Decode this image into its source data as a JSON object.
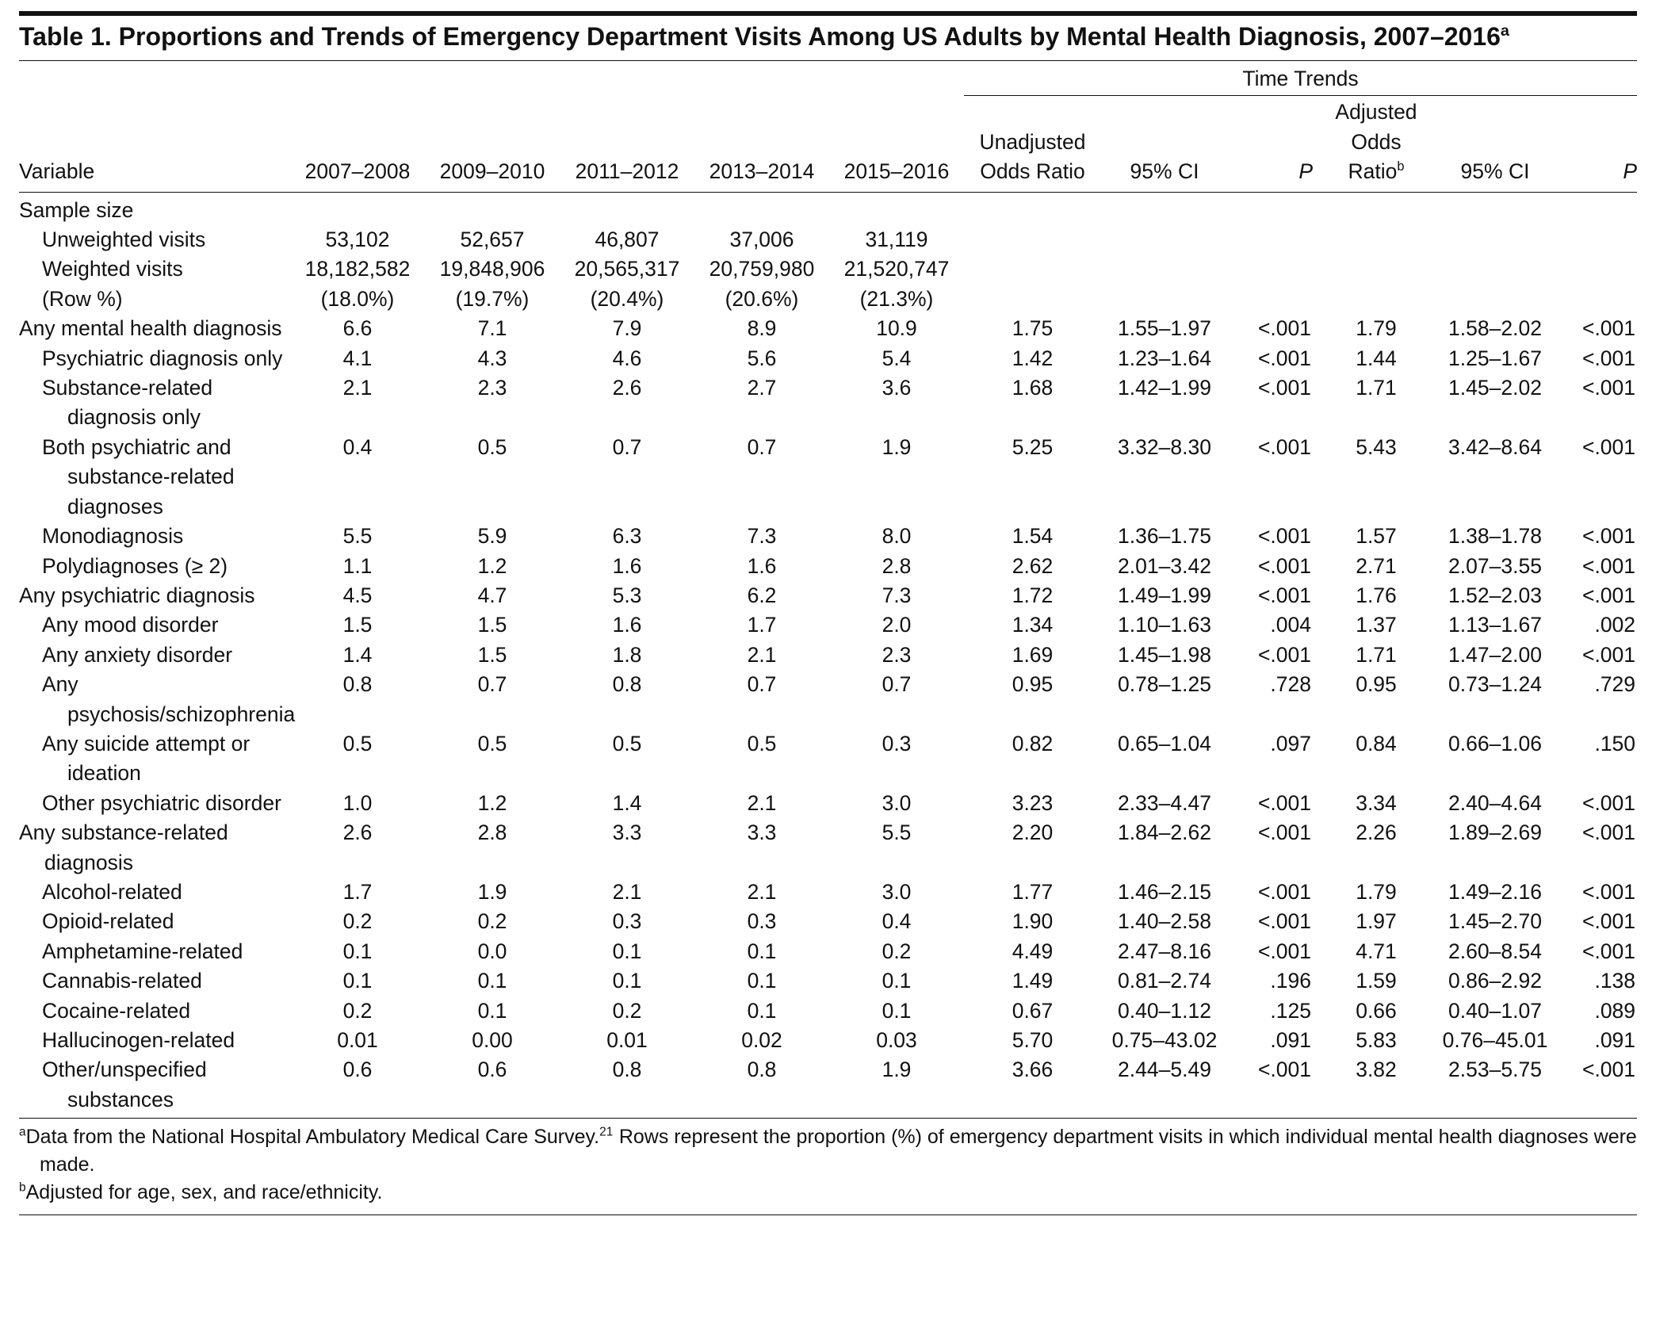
{
  "title": "Table 1. Proportions and Trends of Emergency Department Visits Among US Adults by Mental Health Diagnosis, 2007–2016",
  "title_sup": "a",
  "table": {
    "group_header": "Time Trends",
    "columns": [
      {
        "text": "Variable"
      },
      {
        "text": "2007–2008"
      },
      {
        "text": "2009–2010"
      },
      {
        "text": "2011–2012"
      },
      {
        "text": "2013–2014"
      },
      {
        "text": "2015–2016"
      },
      {
        "text": "Unadjusted Odds Ratio"
      },
      {
        "text": "95% CI"
      },
      {
        "text": "P"
      },
      {
        "text": "Adjusted Odds Ratio",
        "sup": "b"
      },
      {
        "text": "95% CI"
      },
      {
        "text": "P"
      }
    ],
    "rows": [
      {
        "label": "Sample size",
        "children": [
          {
            "label": "Unweighted visits",
            "values": [
              "53,102",
              "52,657",
              "46,807",
              "37,006",
              "31,119"
            ]
          },
          {
            "label": "Weighted visits",
            "values": [
              "18,182,582",
              "19,848,906",
              "20,565,317",
              "20,759,980",
              "21,520,747"
            ]
          },
          {
            "label": "(Row %)",
            "values": [
              "(18.0%)",
              "(19.7%)",
              "(20.4%)",
              "(20.6%)",
              "(21.3%)"
            ]
          }
        ]
      },
      {
        "label": "Any mental health diagnosis",
        "values": [
          "6.6",
          "7.1",
          "7.9",
          "8.9",
          "10.9",
          "1.75",
          "1.55–1.97",
          "<.001",
          "1.79",
          "1.58–2.02",
          "<.001"
        ],
        "children": [
          {
            "label": "Psychiatric diagnosis only",
            "values": [
              "4.1",
              "4.3",
              "4.6",
              "5.6",
              "5.4",
              "1.42",
              "1.23–1.64",
              "<.001",
              "1.44",
              "1.25–1.67",
              "<.001"
            ]
          },
          {
            "label": "Substance-related diagnosis only",
            "values": [
              "2.1",
              "2.3",
              "2.6",
              "2.7",
              "3.6",
              "1.68",
              "1.42–1.99",
              "<.001",
              "1.71",
              "1.45–2.02",
              "<.001"
            ]
          },
          {
            "label": "Both psychiatric and substance-related diagnoses",
            "values": [
              "0.4",
              "0.5",
              "0.7",
              "0.7",
              "1.9",
              "5.25",
              "3.32–8.30",
              "<.001",
              "5.43",
              "3.42–8.64",
              "<.001"
            ]
          },
          {
            "label": "Monodiagnosis",
            "values": [
              "5.5",
              "5.9",
              "6.3",
              "7.3",
              "8.0",
              "1.54",
              "1.36–1.75",
              "<.001",
              "1.57",
              "1.38–1.78",
              "<.001"
            ]
          },
          {
            "label": "Polydiagnoses (≥ 2)",
            "values": [
              "1.1",
              "1.2",
              "1.6",
              "1.6",
              "2.8",
              "2.62",
              "2.01–3.42",
              "<.001",
              "2.71",
              "2.07–3.55",
              "<.001"
            ]
          }
        ]
      },
      {
        "label": "Any psychiatric diagnosis",
        "values": [
          "4.5",
          "4.7",
          "5.3",
          "6.2",
          "7.3",
          "1.72",
          "1.49–1.99",
          "<.001",
          "1.76",
          "1.52–2.03",
          "<.001"
        ],
        "children": [
          {
            "label": "Any mood disorder",
            "values": [
              "1.5",
              "1.5",
              "1.6",
              "1.7",
              "2.0",
              "1.34",
              "1.10–1.63",
              ".004",
              "1.37",
              "1.13–1.67",
              ".002"
            ]
          },
          {
            "label": "Any anxiety disorder",
            "values": [
              "1.4",
              "1.5",
              "1.8",
              "2.1",
              "2.3",
              "1.69",
              "1.45–1.98",
              "<.001",
              "1.71",
              "1.47–2.00",
              "<.001"
            ]
          },
          {
            "label": "Any psychosis/schizophrenia",
            "values": [
              "0.8",
              "0.7",
              "0.8",
              "0.7",
              "0.7",
              "0.95",
              "0.78–1.25",
              ".728",
              "0.95",
              "0.73–1.24",
              ".729"
            ]
          },
          {
            "label": "Any suicide attempt or ideation",
            "values": [
              "0.5",
              "0.5",
              "0.5",
              "0.5",
              "0.3",
              "0.82",
              "0.65–1.04",
              ".097",
              "0.84",
              "0.66–1.06",
              ".150"
            ]
          },
          {
            "label": "Other psychiatric disorder",
            "values": [
              "1.0",
              "1.2",
              "1.4",
              "2.1",
              "3.0",
              "3.23",
              "2.33–4.47",
              "<.001",
              "3.34",
              "2.40–4.64",
              "<.001"
            ]
          }
        ]
      },
      {
        "label": "Any substance-related diagnosis",
        "values": [
          "2.6",
          "2.8",
          "3.3",
          "3.3",
          "5.5",
          "2.20",
          "1.84–2.62",
          "<.001",
          "2.26",
          "1.89–2.69",
          "<.001"
        ],
        "children": [
          {
            "label": "Alcohol-related",
            "values": [
              "1.7",
              "1.9",
              "2.1",
              "2.1",
              "3.0",
              "1.77",
              "1.46–2.15",
              "<.001",
              "1.79",
              "1.49–2.16",
              "<.001"
            ]
          },
          {
            "label": "Opioid-related",
            "values": [
              "0.2",
              "0.2",
              "0.3",
              "0.3",
              "0.4",
              "1.90",
              "1.40–2.58",
              "<.001",
              "1.97",
              "1.45–2.70",
              "<.001"
            ]
          },
          {
            "label": "Amphetamine-related",
            "values": [
              "0.1",
              "0.0",
              "0.1",
              "0.1",
              "0.2",
              "4.49",
              "2.47–8.16",
              "<.001",
              "4.71",
              "2.60–8.54",
              "<.001"
            ]
          },
          {
            "label": "Cannabis-related",
            "values": [
              "0.1",
              "0.1",
              "0.1",
              "0.1",
              "0.1",
              "1.49",
              "0.81–2.74",
              ".196",
              "1.59",
              "0.86–2.92",
              ".138"
            ]
          },
          {
            "label": "Cocaine-related",
            "values": [
              "0.2",
              "0.1",
              "0.2",
              "0.1",
              "0.1",
              "0.67",
              "0.40–1.12",
              ".125",
              "0.66",
              "0.40–1.07",
              ".089"
            ]
          },
          {
            "label": "Hallucinogen-related",
            "values": [
              "0.01",
              "0.00",
              "0.01",
              "0.02",
              "0.03",
              "5.70",
              "0.75–43.02",
              ".091",
              "5.83",
              "0.76–45.01",
              ".091"
            ]
          },
          {
            "label": "Other/unspecified substances",
            "values": [
              "0.6",
              "0.6",
              "0.8",
              "0.8",
              "1.9",
              "3.66",
              "2.44–5.49",
              "<.001",
              "3.82",
              "2.53–5.75",
              "<.001"
            ]
          }
        ]
      }
    ]
  },
  "footnotes": [
    {
      "mark": "a",
      "text": "Data from the National Hospital Ambulatory Medical Care Survey.",
      "ref": "21",
      "text_after": "Rows represent the proportion (%) of emergency department visits in which individual mental health diagnoses were made."
    },
    {
      "mark": "b",
      "text": "Adjusted for age, sex, and race/ethnicity."
    }
  ]
}
